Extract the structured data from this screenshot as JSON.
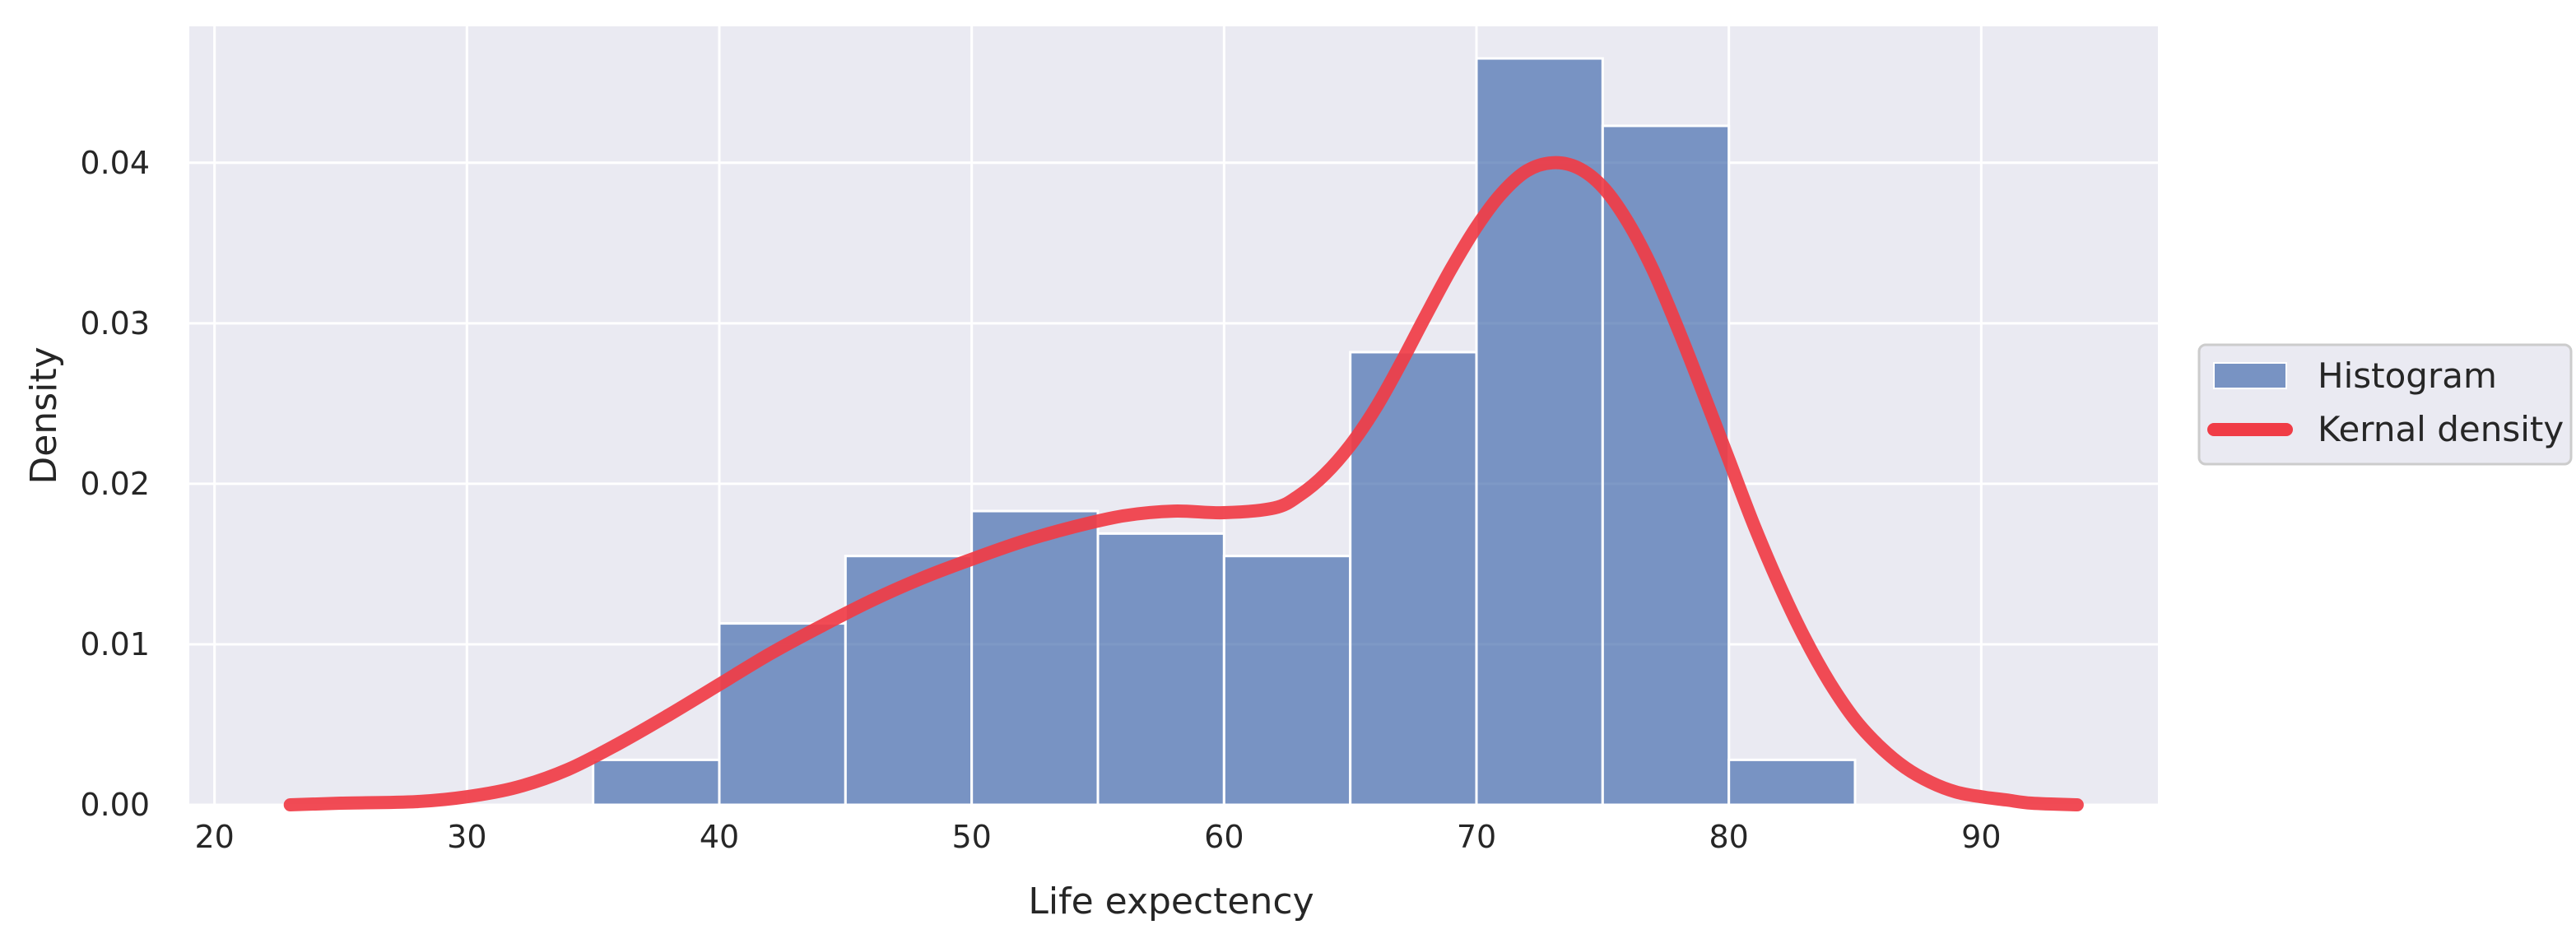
{
  "chart_data": {
    "type": "bar",
    "xlabel": "Life expectency",
    "ylabel": "Density",
    "xlim": [
      19,
      97
    ],
    "ylim": [
      0,
      0.0485
    ],
    "xticks": [
      20,
      30,
      40,
      50,
      60,
      70,
      80,
      90
    ],
    "yticks": [
      0.0,
      0.01,
      0.02,
      0.03,
      0.04
    ],
    "ytick_labels": [
      "0.00",
      "0.01",
      "0.02",
      "0.03",
      "0.04"
    ],
    "grid": true,
    "legend_placement": "outside-right",
    "histogram": {
      "name": "Histogram",
      "bin_edges": [
        35,
        40,
        45,
        50,
        55,
        60,
        65,
        70,
        75,
        80,
        85
      ],
      "densities": [
        0.0028,
        0.0113,
        0.0155,
        0.0183,
        0.0169,
        0.0155,
        0.0282,
        0.0465,
        0.0423,
        0.0028
      ],
      "color": "#4c72b0"
    },
    "kde": {
      "name": "Kernal density",
      "color": "#f03c46",
      "x": [
        23,
        25,
        28,
        30,
        32,
        34,
        36,
        38,
        40,
        42,
        44,
        46,
        48,
        50,
        52,
        54,
        56,
        58,
        60,
        62,
        63,
        64,
        65,
        66,
        67,
        68,
        69,
        70,
        71,
        72,
        73,
        74,
        75,
        76,
        77,
        78,
        79,
        80,
        81,
        82,
        83,
        84,
        85,
        86,
        87,
        88,
        89,
        90,
        91,
        92,
        93.8
      ],
      "y": [
        0.0,
        0.0001,
        0.0002,
        0.0005,
        0.0011,
        0.0022,
        0.0038,
        0.0056,
        0.0075,
        0.0094,
        0.0111,
        0.0127,
        0.0141,
        0.0153,
        0.0164,
        0.0173,
        0.018,
        0.0183,
        0.0182,
        0.0185,
        0.0193,
        0.0206,
        0.0224,
        0.0247,
        0.0275,
        0.0305,
        0.0334,
        0.036,
        0.0381,
        0.0395,
        0.04,
        0.0397,
        0.0385,
        0.0363,
        0.0333,
        0.0296,
        0.0256,
        0.0215,
        0.0174,
        0.0137,
        0.0104,
        0.0076,
        0.0053,
        0.0036,
        0.0023,
        0.0014,
        0.0008,
        0.0005,
        0.0003,
        0.0001,
        0.0
      ]
    }
  }
}
